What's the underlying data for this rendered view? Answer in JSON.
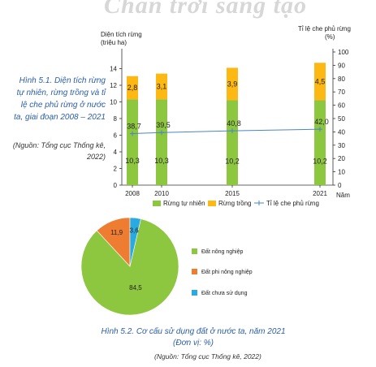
{
  "watermark": "Chân trời sáng tạo",
  "figure1": {
    "caption": "Hình 5.1. Diện tích rừng tự nhiên, rừng trồng và tỉ lệ che phủ rừng ở nước ta, giai đoạn 2008 – 2021",
    "source": "(Nguồn: Tổng cục Thống kê, 2022)"
  },
  "figure2": {
    "caption": "Hình 5.2. Cơ cấu sử dụng đất ở nước ta, năm 2021 (Đơn vị: %)",
    "source": "(Nguồn: Tổng cục Thống kê, 2022)"
  },
  "colors": {
    "natural_forest": "#8dc63f",
    "planted_forest": "#fdb813",
    "coverage_line": "#4a86c5",
    "agri_land": "#8dc63f",
    "non_agri_land": "#ee7d31",
    "unused_land": "#29abe2"
  },
  "chart_data": [
    {
      "type": "bar",
      "stacked": true,
      "categories": [
        "2008",
        "2010",
        "2015",
        "2021"
      ],
      "ylabel_left": "Diện tích rừng\n(triệu ha)",
      "ylabel_right": "Tỉ lệ che phủ rừng\n(%)",
      "xlabel": "Năm",
      "ylim_left": [
        0,
        16
      ],
      "yticks_left": [
        0,
        2,
        4,
        6,
        8,
        10,
        12,
        14
      ],
      "ylim_right": [
        0,
        100
      ],
      "yticks_right": [
        0,
        10,
        20,
        30,
        40,
        50,
        60,
        70,
        80,
        90,
        100
      ],
      "series": [
        {
          "name": "Rừng tự nhiên",
          "values": [
            10.3,
            10.3,
            10.2,
            10.2
          ],
          "labels": [
            "10,3",
            "10,3",
            "10,2",
            "10,2"
          ],
          "axis": "left"
        },
        {
          "name": "Rừng trồng",
          "values": [
            2.8,
            3.1,
            3.9,
            4.5
          ],
          "labels": [
            "2,8",
            "3,1",
            "3,9",
            "4,5"
          ],
          "axis": "left"
        },
        {
          "name": "Tỉ lệ che phủ rừng",
          "type": "line",
          "values": [
            38.7,
            39.5,
            40.8,
            42.0
          ],
          "labels": [
            "38,7",
            "39,5",
            "40,8",
            "42,0"
          ],
          "axis": "right"
        }
      ],
      "legend_position": "bottom"
    },
    {
      "type": "pie",
      "slices": [
        {
          "name": "Đất nông nghiệp",
          "value": 84.5,
          "label": "84,5"
        },
        {
          "name": "Đất phi nông nghiệp",
          "value": 11.9,
          "label": "11,9"
        },
        {
          "name": "Đất chưa sử dụng",
          "value": 3.6,
          "label": "3,6"
        }
      ],
      "legend_position": "right"
    }
  ]
}
